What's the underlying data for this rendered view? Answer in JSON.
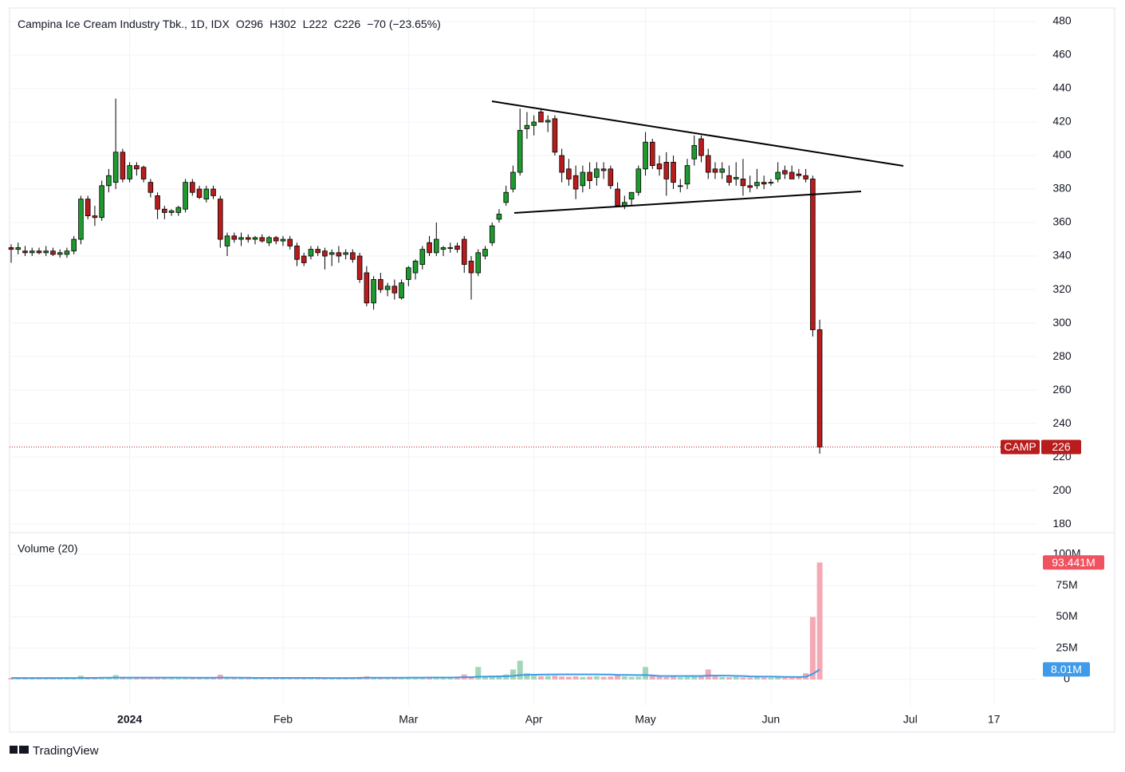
{
  "chart_data": {
    "type": "candlestick",
    "title": "Campina Ice Cream Industry Tbk., 1D, IDX",
    "legend": [
      "O296",
      "H302",
      "L222",
      "C226",
      "−70 (−23.65%)"
    ],
    "symbol": "CAMP",
    "up_color": "#1f9a2e",
    "down_color": "#b81c1c",
    "ohlc": [
      [
        345,
        347,
        336,
        344
      ],
      [
        344,
        348,
        341,
        345
      ],
      [
        343,
        346,
        340,
        342
      ],
      [
        342,
        345,
        340,
        343
      ],
      [
        343,
        345,
        341,
        342
      ],
      [
        342,
        346,
        340,
        343
      ],
      [
        343,
        345,
        340,
        341
      ],
      [
        341,
        344,
        339,
        342
      ],
      [
        341,
        345,
        339,
        343
      ],
      [
        343,
        352,
        341,
        350
      ],
      [
        350,
        376,
        347,
        374
      ],
      [
        374,
        376,
        362,
        364
      ],
      [
        364,
        370,
        358,
        363
      ],
      [
        363,
        385,
        361,
        382
      ],
      [
        382,
        392,
        378,
        388
      ],
      [
        384,
        434,
        380,
        402
      ],
      [
        402,
        404,
        384,
        386
      ],
      [
        386,
        396,
        384,
        394
      ],
      [
        394,
        396,
        388,
        392
      ],
      [
        393,
        394,
        384,
        386
      ],
      [
        384,
        386,
        375,
        378
      ],
      [
        376,
        378,
        362,
        368
      ],
      [
        368,
        370,
        362,
        366
      ],
      [
        366,
        368,
        364,
        367
      ],
      [
        366,
        370,
        364,
        369
      ],
      [
        368,
        386,
        366,
        384
      ],
      [
        384,
        386,
        376,
        378
      ],
      [
        380,
        382,
        374,
        375
      ],
      [
        374,
        382,
        372,
        380
      ],
      [
        380,
        382,
        374,
        376
      ],
      [
        374,
        376,
        345,
        350
      ],
      [
        346,
        354,
        340,
        352
      ],
      [
        352,
        354,
        348,
        350
      ],
      [
        350,
        354,
        346,
        351
      ],
      [
        351,
        353,
        348,
        350
      ],
      [
        350,
        352,
        347,
        351
      ],
      [
        351,
        353,
        348,
        349
      ],
      [
        348,
        352,
        346,
        351
      ],
      [
        351,
        352,
        347,
        349
      ],
      [
        349,
        352,
        346,
        350
      ],
      [
        350,
        352,
        344,
        346
      ],
      [
        346,
        348,
        334,
        338
      ],
      [
        340,
        342,
        334,
        336
      ],
      [
        340,
        346,
        338,
        344
      ],
      [
        344,
        346,
        340,
        342
      ],
      [
        343,
        345,
        332,
        340
      ],
      [
        341,
        344,
        334,
        342
      ],
      [
        342,
        346,
        336,
        340
      ],
      [
        341,
        344,
        338,
        342
      ],
      [
        342,
        344,
        336,
        338
      ],
      [
        340,
        342,
        324,
        326
      ],
      [
        330,
        334,
        310,
        312
      ],
      [
        312,
        328,
        308,
        326
      ],
      [
        326,
        330,
        318,
        320
      ],
      [
        320,
        324,
        316,
        322
      ],
      [
        322,
        326,
        314,
        318
      ],
      [
        315,
        326,
        314,
        324
      ],
      [
        326,
        334,
        322,
        333
      ],
      [
        330,
        338,
        326,
        337
      ],
      [
        335,
        346,
        332,
        344
      ],
      [
        348,
        352,
        340,
        342
      ],
      [
        342,
        360,
        340,
        350
      ],
      [
        344,
        346,
        340,
        345
      ],
      [
        345,
        348,
        342,
        345
      ],
      [
        346,
        348,
        342,
        344
      ],
      [
        350,
        352,
        330,
        335
      ],
      [
        337,
        340,
        314,
        330
      ],
      [
        330,
        344,
        328,
        342
      ],
      [
        340,
        346,
        338,
        344
      ],
      [
        348,
        360,
        346,
        358
      ],
      [
        362,
        368,
        360,
        365
      ],
      [
        372,
        382,
        370,
        378
      ],
      [
        380,
        394,
        378,
        390
      ],
      [
        390,
        428,
        388,
        415
      ],
      [
        416,
        426,
        410,
        418
      ],
      [
        418,
        424,
        412,
        420
      ],
      [
        426,
        428,
        420,
        420
      ],
      [
        420,
        424,
        414,
        421
      ],
      [
        422,
        424,
        400,
        402
      ],
      [
        400,
        404,
        384,
        390
      ],
      [
        392,
        398,
        382,
        386
      ],
      [
        388,
        394,
        374,
        380
      ],
      [
        382,
        394,
        378,
        390
      ],
      [
        390,
        396,
        380,
        385
      ],
      [
        387,
        396,
        382,
        392
      ],
      [
        392,
        396,
        386,
        391
      ],
      [
        392,
        394,
        380,
        382
      ],
      [
        380,
        384,
        370,
        370
      ],
      [
        370,
        376,
        368,
        372
      ],
      [
        374,
        378,
        370,
        378
      ],
      [
        378,
        394,
        376,
        392
      ],
      [
        392,
        414,
        388,
        408
      ],
      [
        408,
        410,
        392,
        394
      ],
      [
        395,
        400,
        388,
        392
      ],
      [
        396,
        402,
        376,
        386
      ],
      [
        396,
        400,
        380,
        384
      ],
      [
        382,
        386,
        378,
        382
      ],
      [
        383,
        398,
        380,
        394
      ],
      [
        398,
        412,
        394,
        406
      ],
      [
        410,
        412,
        396,
        400
      ],
      [
        400,
        404,
        386,
        390
      ],
      [
        392,
        396,
        386,
        390
      ],
      [
        390,
        396,
        386,
        392
      ],
      [
        388,
        394,
        382,
        384
      ],
      [
        386,
        396,
        382,
        387
      ],
      [
        386,
        398,
        376,
        382
      ],
      [
        382,
        388,
        378,
        381
      ],
      [
        382,
        392,
        380,
        384
      ],
      [
        384,
        388,
        380,
        383
      ],
      [
        384,
        386,
        382,
        384
      ],
      [
        386,
        396,
        384,
        390
      ],
      [
        391,
        394,
        386,
        389
      ],
      [
        390,
        394,
        386,
        386
      ],
      [
        389,
        392,
        386,
        388
      ],
      [
        388,
        392,
        384,
        386
      ],
      [
        386,
        388,
        292,
        296
      ],
      [
        296,
        302,
        222,
        226
      ]
    ],
    "xlim": [
      -0.23,
      147.1
    ],
    "xticks": [
      {
        "value": 17,
        "label": "2024"
      },
      {
        "value": 39,
        "label": "Feb"
      },
      {
        "value": 57,
        "label": "Mar"
      },
      {
        "value": 75,
        "label": "Apr"
      },
      {
        "value": 91,
        "label": "May"
      },
      {
        "value": 109,
        "label": "Jun"
      },
      {
        "value": 129,
        "label": "Jul"
      },
      {
        "value": 141,
        "label": "17"
      }
    ],
    "ylim": [
      174.8,
      488.1
    ],
    "yticks": [
      180,
      200,
      220,
      240,
      260,
      280,
      300,
      320,
      340,
      360,
      380,
      400,
      420,
      440,
      460,
      480
    ],
    "volume": {
      "title": "Volume (20)",
      "up_color": "#a3d6b6",
      "down_color": "#f4a9b4",
      "values": [
        1.2,
        1.0,
        0.9,
        1.1,
        1.0,
        1.2,
        0.9,
        1.0,
        1.1,
        1.5,
        3.0,
        1.8,
        1.2,
        1.6,
        1.9,
        3.5,
        1.6,
        1.3,
        1.2,
        1.4,
        1.5,
        1.2,
        1.0,
        1.1,
        1.3,
        1.6,
        1.4,
        1.2,
        1.3,
        1.1,
        3.8,
        1.6,
        1.1,
        1.0,
        1.2,
        0.9,
        1.1,
        1.0,
        1.2,
        1.1,
        1.3,
        1.5,
        1.2,
        1.0,
        1.1,
        1.3,
        1.2,
        1.0,
        1.1,
        1.4,
        2.0,
        2.5,
        1.8,
        1.5,
        1.3,
        1.6,
        1.4,
        1.7,
        1.9,
        1.6,
        2.0,
        2.2,
        1.8,
        1.5,
        1.7,
        4.0,
        2.5,
        10.0,
        2.8,
        3.0,
        3.2,
        4.0,
        8.0,
        15.0,
        5.0,
        3.0,
        2.6,
        2.8,
        3.0,
        2.4,
        2.2,
        2.5,
        2.0,
        2.3,
        2.6,
        2.1,
        2.4,
        4.0,
        2.5,
        2.0,
        2.2,
        10.0,
        3.5,
        2.5,
        2.0,
        2.3,
        1.8,
        2.0,
        2.6,
        3.0,
        8.0,
        2.5,
        2.0,
        1.8,
        2.1,
        1.7,
        1.6,
        1.9,
        1.5,
        1.4,
        1.6,
        1.5,
        1.4,
        1.6,
        5.0,
        50.0,
        93.441
      ],
      "last_value_label": "93.441M",
      "badge_color": "#f0525f",
      "ylim": [
        0,
        117.2
      ],
      "yticks": [
        {
          "value": 0,
          "label": "0"
        },
        {
          "value": 25,
          "label": "25M"
        },
        {
          "value": 50,
          "label": "50M"
        },
        {
          "value": 75,
          "label": "75M"
        },
        {
          "value": 100,
          "label": "100M"
        }
      ]
    },
    "volume_ma": {
      "color": "#3d9be9",
      "values": [
        1.2,
        1.2,
        1.2,
        1.2,
        1.2,
        1.2,
        1.2,
        1.2,
        1.2,
        1.2,
        1.3,
        1.3,
        1.3,
        1.4,
        1.4,
        1.5,
        1.5,
        1.5,
        1.5,
        1.5,
        1.5,
        1.5,
        1.5,
        1.5,
        1.5,
        1.5,
        1.4,
        1.4,
        1.4,
        1.4,
        1.5,
        1.5,
        1.5,
        1.4,
        1.4,
        1.3,
        1.3,
        1.3,
        1.3,
        1.3,
        1.3,
        1.3,
        1.3,
        1.3,
        1.3,
        1.2,
        1.2,
        1.2,
        1.2,
        1.2,
        1.3,
        1.4,
        1.4,
        1.4,
        1.4,
        1.4,
        1.4,
        1.5,
        1.5,
        1.5,
        1.6,
        1.6,
        1.6,
        1.6,
        1.7,
        1.8,
        1.8,
        2.2,
        2.3,
        2.4,
        2.5,
        2.6,
        2.9,
        3.5,
        3.7,
        3.8,
        3.9,
        4.0,
        4.1,
        4.1,
        4.1,
        4.1,
        4.1,
        4.1,
        4.1,
        4.0,
        4.0,
        3.7,
        3.7,
        3.6,
        3.5,
        3.6,
        3.3,
        2.9,
        2.8,
        2.8,
        2.8,
        2.8,
        2.8,
        2.8,
        3.1,
        3.1,
        3.1,
        3.0,
        2.9,
        2.8,
        2.5,
        2.4,
        2.3,
        2.3,
        2.2,
        2.1,
        2.1,
        2.0,
        2.2,
        4.4,
        8.01
      ],
      "last_value_label": "8.01M"
    },
    "brand": "TradingView"
  }
}
